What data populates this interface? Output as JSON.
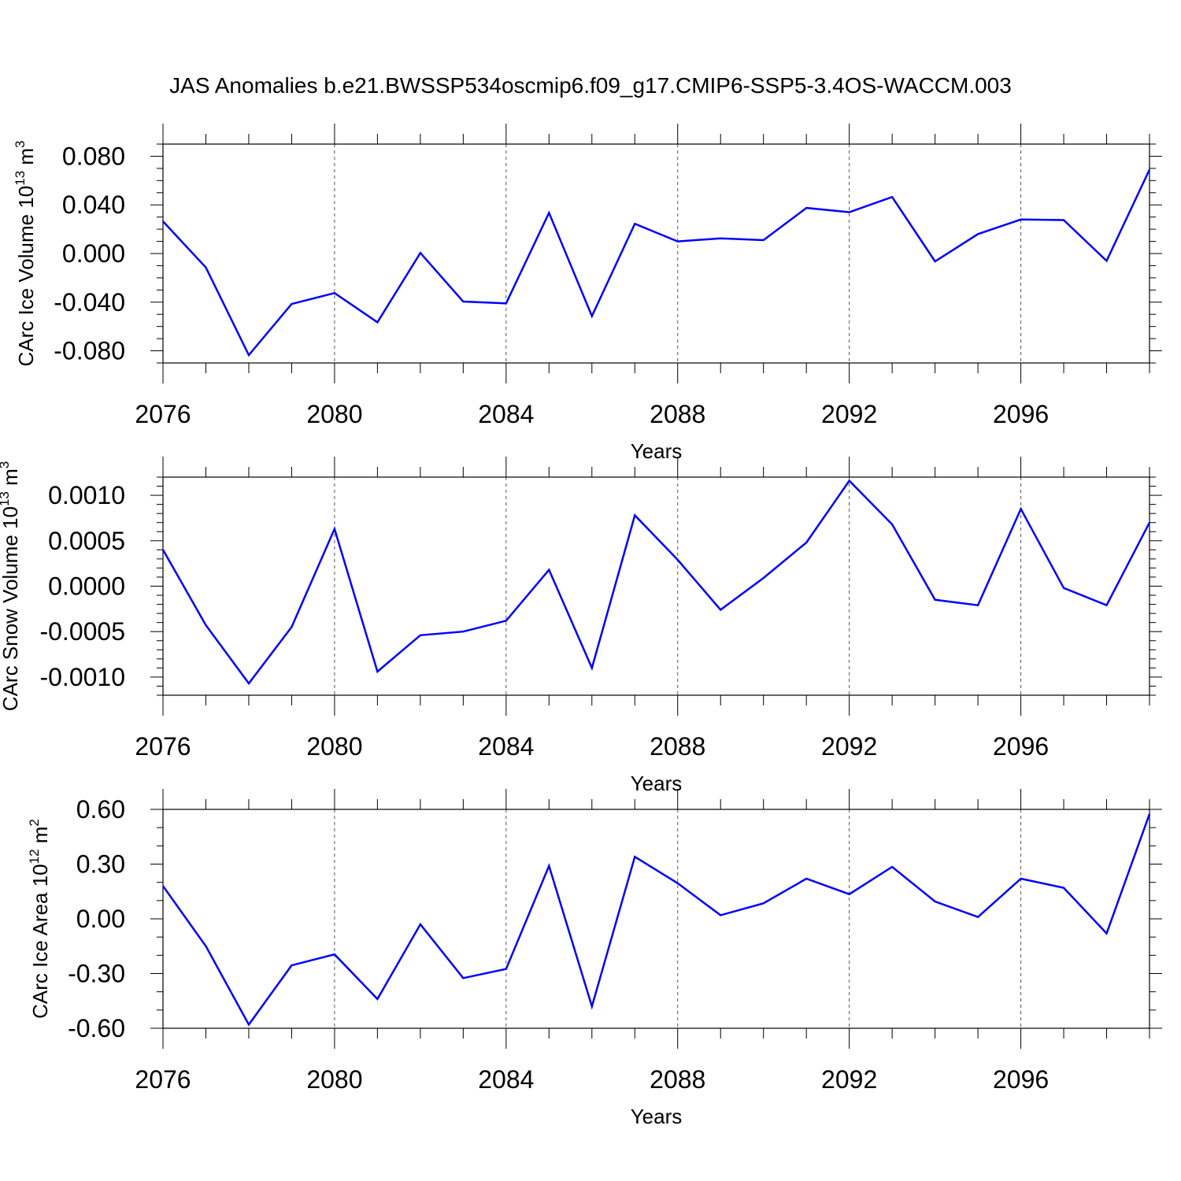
{
  "chart_data": {
    "title": "JAS Anomalies b.e21.BWSSP534oscmip6.f09_g17.CMIP6-SSP5-3.4OS-WACCM.003",
    "panels": [
      {
        "type": "line",
        "ylabel_main": "CArc Ice Volume 10",
        "ylabel_sup": "13",
        "ylabel_unit": " m",
        "ylabel_unit_sup": "3",
        "xlabel": "Years",
        "xlim": [
          2076,
          2099
        ],
        "ylim": [
          -0.09,
          0.09
        ],
        "x_ticks": [
          "2076",
          "2080",
          "2084",
          "2088",
          "2092",
          "2096"
        ],
        "y_ticks": [
          {
            "v": 0.08,
            "label": "0.080"
          },
          {
            "v": 0.04,
            "label": "0.040"
          },
          {
            "v": 0.0,
            "label": "0.000"
          },
          {
            "v": -0.04,
            "label": "-0.040"
          },
          {
            "v": -0.08,
            "label": "-0.080"
          }
        ],
        "y_minor_step": 0.01,
        "grid": "vertical dashed",
        "color": "#0000ff",
        "x": [
          2076,
          2077,
          2078,
          2079,
          2080,
          2081,
          2082,
          2083,
          2084,
          2085,
          2086,
          2087,
          2088,
          2089,
          2090,
          2091,
          2092,
          2093,
          2094,
          2095,
          2096,
          2097,
          2098,
          2099
        ],
        "values": [
          0.0265,
          -0.0115,
          -0.0835,
          -0.0415,
          -0.0325,
          -0.0565,
          0.0005,
          -0.0395,
          -0.041,
          0.0335,
          -0.0515,
          0.0245,
          0.01,
          0.0125,
          0.011,
          0.0375,
          0.034,
          0.0465,
          -0.0065,
          0.016,
          0.028,
          0.0275,
          -0.006,
          0.069
        ]
      },
      {
        "type": "line",
        "ylabel_main": "CArc Snow Volume 10",
        "ylabel_sup": "13",
        "ylabel_unit": " m",
        "ylabel_unit_sup": "3",
        "xlabel": "Years",
        "xlim": [
          2076,
          2099
        ],
        "ylim": [
          -0.0012,
          0.0012
        ],
        "x_ticks": [
          "2076",
          "2080",
          "2084",
          "2088",
          "2092",
          "2096"
        ],
        "y_ticks": [
          {
            "v": 0.001,
            "label": "0.0010"
          },
          {
            "v": 0.0005,
            "label": "0.0005"
          },
          {
            "v": 0.0,
            "label": "0.0000"
          },
          {
            "v": -0.0005,
            "label": "-0.0005"
          },
          {
            "v": -0.001,
            "label": "-0.0010"
          }
        ],
        "y_minor_step": 0.0001,
        "grid": "vertical dashed",
        "color": "#0000ff",
        "x": [
          2076,
          2077,
          2078,
          2079,
          2080,
          2081,
          2082,
          2083,
          2084,
          2085,
          2086,
          2087,
          2088,
          2089,
          2090,
          2091,
          2092,
          2093,
          2094,
          2095,
          2096,
          2097,
          2098,
          2099
        ],
        "values": [
          0.0004,
          -0.00043,
          -0.00107,
          -0.00045,
          0.00063,
          -0.00094,
          -0.00054,
          -0.0005,
          -0.00038,
          0.00018,
          -0.0009,
          0.00078,
          0.00029,
          -0.00026,
          9e-05,
          0.00048,
          0.00116,
          0.00068,
          -0.00015,
          -0.00021,
          0.00085,
          -2e-05,
          -0.00021,
          0.0007
        ]
      },
      {
        "type": "line",
        "ylabel_main": "CArc Ice Area 10",
        "ylabel_sup": "12",
        "ylabel_unit": " m",
        "ylabel_unit_sup": "2",
        "xlabel": "Years",
        "xlim": [
          2076,
          2099
        ],
        "ylim": [
          -0.6,
          0.6
        ],
        "x_ticks": [
          "2076",
          "2080",
          "2084",
          "2088",
          "2092",
          "2096"
        ],
        "y_ticks": [
          {
            "v": 0.6,
            "label": "0.60"
          },
          {
            "v": 0.3,
            "label": "0.30"
          },
          {
            "v": 0.0,
            "label": "0.00"
          },
          {
            "v": -0.3,
            "label": "-0.30"
          },
          {
            "v": -0.6,
            "label": "-0.60"
          }
        ],
        "y_minor_step": 0.1,
        "grid": "vertical dashed",
        "color": "#0000ff",
        "x": [
          2076,
          2077,
          2078,
          2079,
          2080,
          2081,
          2082,
          2083,
          2084,
          2085,
          2086,
          2087,
          2088,
          2089,
          2090,
          2091,
          2092,
          2093,
          2094,
          2095,
          2096,
          2097,
          2098,
          2099
        ],
        "values": [
          0.18,
          -0.15,
          -0.58,
          -0.255,
          -0.195,
          -0.44,
          -0.03,
          -0.325,
          -0.275,
          0.29,
          -0.48,
          0.34,
          0.195,
          0.02,
          0.085,
          0.22,
          0.135,
          0.285,
          0.095,
          0.01,
          0.22,
          0.17,
          -0.08,
          0.575
        ]
      }
    ]
  }
}
